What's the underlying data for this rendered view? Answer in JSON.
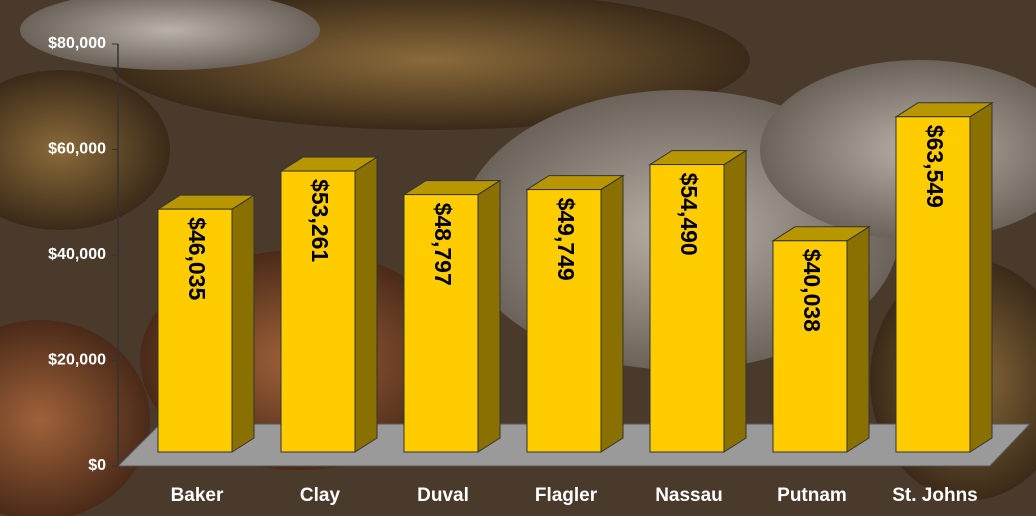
{
  "chart_data": {
    "type": "bar3d",
    "categories": [
      "Baker",
      "Clay",
      "Duval",
      "Flagler",
      "Nassau",
      "Putnam",
      "St. Johns"
    ],
    "values": [
      46035,
      53261,
      48797,
      49749,
      54490,
      40038,
      63549
    ],
    "value_labels": [
      "$46,035",
      "$53,261",
      "$48,797",
      "$49,749",
      "$54,490",
      "$40,038",
      "$63,549"
    ],
    "color": "#ffcc00",
    "ylim": [
      0,
      80000
    ],
    "yticks": [
      {
        "value": 0,
        "label": "$0"
      },
      {
        "value": 20000,
        "label": "$20,000"
      },
      {
        "value": 40000,
        "label": "$40,000"
      },
      {
        "value": 60000,
        "label": "$60,000"
      },
      {
        "value": 80000,
        "label": "$80,000"
      }
    ]
  }
}
